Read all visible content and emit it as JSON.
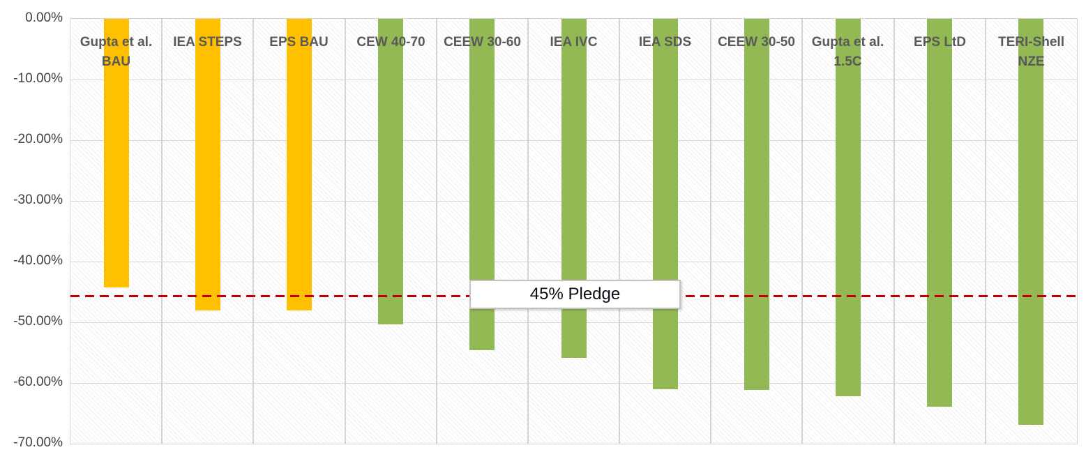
{
  "chart_data": {
    "type": "bar",
    "title": "",
    "xlabel": "",
    "ylabel": "",
    "ylim": [
      -70,
      0
    ],
    "grid": true,
    "background_pattern": "diagonal-hatch",
    "yticks": [
      "0.00%",
      "-10.00%",
      "-20.00%",
      "-30.00%",
      "-40.00%",
      "-50.00%",
      "-60.00%",
      "-70.00%"
    ],
    "categories": [
      [
        "Gupta et al.",
        "BAU"
      ],
      [
        "IEA STEPS"
      ],
      [
        "EPS BAU"
      ],
      [
        "CEW 40-70"
      ],
      [
        "CEEW 30-60"
      ],
      [
        "IEA IVC"
      ],
      [
        "IEA SDS"
      ],
      [
        "CEEW 30-50"
      ],
      [
        "Gupta et al.",
        "1.5C"
      ],
      [
        "EPS LtD"
      ],
      [
        "TERI-Shell",
        "NZE"
      ]
    ],
    "values": [
      -44.2,
      -48.0,
      -48.1,
      -50.3,
      -54.6,
      -55.9,
      -61.0,
      -61.2,
      -62.2,
      -63.9,
      -66.9
    ],
    "bar_colors": [
      "#FFC000",
      "#FFC000",
      "#FFC000",
      "#93B954",
      "#93B954",
      "#93B954",
      "#93B954",
      "#93B954",
      "#93B954",
      "#93B954",
      "#93B954"
    ],
    "colors": {
      "bau_orange": "#FFC000",
      "scenario_green": "#93B954",
      "reference_red": "#C00000",
      "gridline": "#D9D9D9",
      "category_text": "#595959",
      "tick_text": "#404040"
    },
    "reference_line": {
      "value": -45.6,
      "label": "45% Pledge",
      "color": "#C00000",
      "style": "dashed"
    },
    "legend": null
  }
}
